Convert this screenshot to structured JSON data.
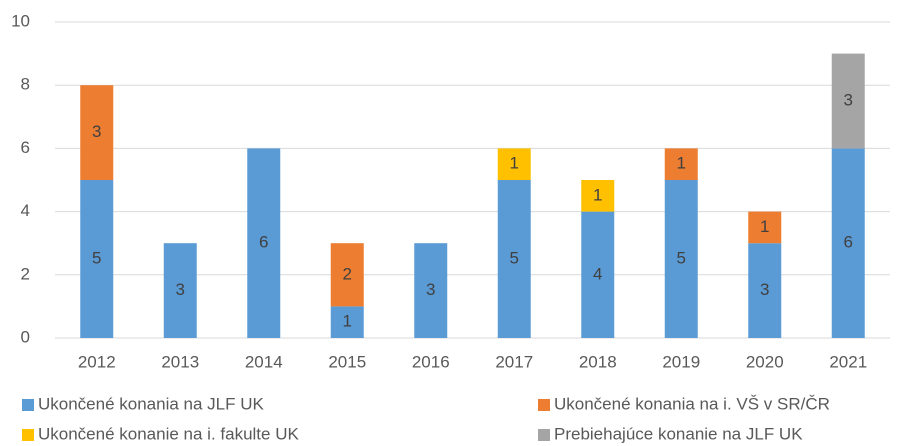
{
  "chart_data": {
    "type": "bar",
    "stacked": true,
    "categories": [
      "2012",
      "2013",
      "2014",
      "2015",
      "2016",
      "2017",
      "2018",
      "2019",
      "2020",
      "2021"
    ],
    "series": [
      {
        "name": "Ukončené konania na JLF UK",
        "color": "#5b9bd5",
        "values": [
          5,
          3,
          6,
          1,
          3,
          5,
          4,
          5,
          3,
          6
        ]
      },
      {
        "name": "Ukončené konania na i. VŠ v SR/ČR",
        "color": "#ed7d31",
        "values": [
          3,
          null,
          null,
          2,
          null,
          null,
          null,
          1,
          1,
          null
        ]
      },
      {
        "name": "Ukončené konanie na i. fakulte UK",
        "color": "#ffc000",
        "values": [
          null,
          null,
          null,
          null,
          null,
          1,
          1,
          null,
          null,
          null
        ]
      },
      {
        "name": "Prebiehajúce konanie na JLF UK",
        "color": "#a5a5a5",
        "values": [
          null,
          null,
          null,
          null,
          null,
          null,
          null,
          null,
          null,
          3
        ]
      }
    ],
    "ylim": [
      0,
      10
    ],
    "yticks": [
      0,
      2,
      4,
      6,
      8,
      10
    ],
    "grid": true,
    "data_labels": true,
    "legend": "bottom"
  }
}
